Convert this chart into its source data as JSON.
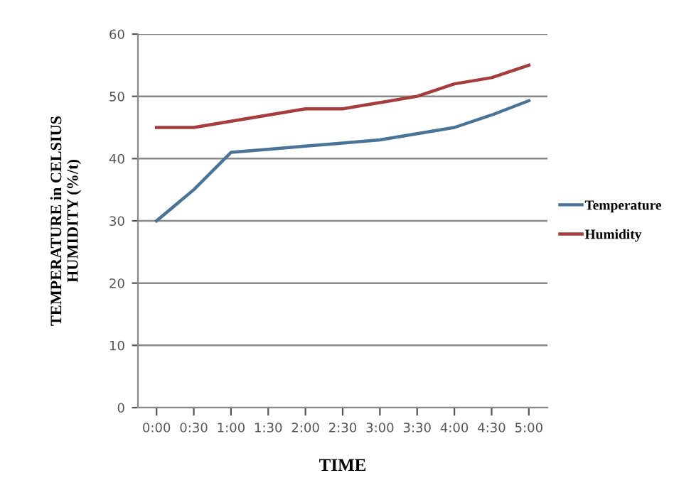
{
  "chart_data": {
    "type": "line",
    "xlabel": "TIME",
    "ylabel": "TEMPERATURE in CELSIUS\nHUMIDITY (%/t)",
    "categories": [
      "0:00",
      "0:30",
      "1:00",
      "1:30",
      "2:00",
      "2:30",
      "3:00",
      "3:30",
      "4:00",
      "4:30",
      "5:00"
    ],
    "series": [
      {
        "name": "Temperature",
        "color": "#4a7497",
        "values": [
          30,
          35,
          41,
          41.5,
          42,
          42.5,
          43,
          44,
          45,
          47,
          49.3
        ]
      },
      {
        "name": "Humidity",
        "color": "#a63c3c",
        "values": [
          45,
          45,
          46,
          47,
          48,
          48,
          49,
          50,
          52,
          53,
          55
        ]
      }
    ],
    "ylim": [
      0,
      60
    ],
    "yticks": [
      0,
      10,
      20,
      30,
      40,
      50,
      60
    ],
    "grid": "y",
    "legend": "right",
    "marker": "none",
    "line_style": "solid"
  }
}
